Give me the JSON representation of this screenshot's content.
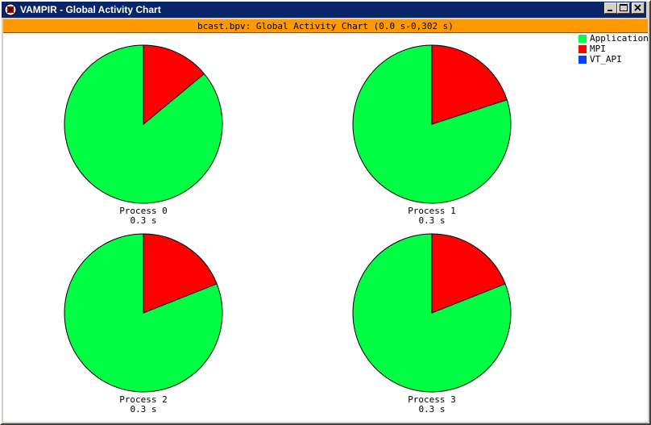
{
  "window": {
    "title": "VAMPIR - Global Activity Chart",
    "controls": [
      "minimize-icon",
      "maximize-icon",
      "close-icon"
    ]
  },
  "header": {
    "text": "bcast.bpv: Global Activity Chart (0.0 s-0,302 s)"
  },
  "legend": [
    {
      "label": "Application",
      "color": "#00ff44"
    },
    {
      "label": "MPI",
      "color": "#ff0000"
    },
    {
      "label": "VT_API",
      "color": "#0044ff"
    }
  ],
  "chart_data": [
    {
      "type": "pie",
      "title": "Process 0",
      "subtitle": "0.3 s",
      "slices": [
        {
          "label": "MPI",
          "value": 0.14,
          "color": "#ff0000"
        },
        {
          "label": "Application",
          "value": 0.86,
          "color": "#00ff44"
        }
      ]
    },
    {
      "type": "pie",
      "title": "Process 1",
      "subtitle": "0.3 s",
      "slices": [
        {
          "label": "MPI",
          "value": 0.2,
          "color": "#ff0000"
        },
        {
          "label": "Application",
          "value": 0.8,
          "color": "#00ff44"
        }
      ]
    },
    {
      "type": "pie",
      "title": "Process 2",
      "subtitle": "0.3 s",
      "slices": [
        {
          "label": "MPI",
          "value": 0.19,
          "color": "#ff0000"
        },
        {
          "label": "Application",
          "value": 0.81,
          "color": "#00ff44"
        }
      ]
    },
    {
      "type": "pie",
      "title": "Process 3",
      "subtitle": "0.3 s",
      "slices": [
        {
          "label": "MPI",
          "value": 0.19,
          "color": "#ff0000"
        },
        {
          "label": "Application",
          "value": 0.81,
          "color": "#00ff44"
        }
      ]
    }
  ]
}
